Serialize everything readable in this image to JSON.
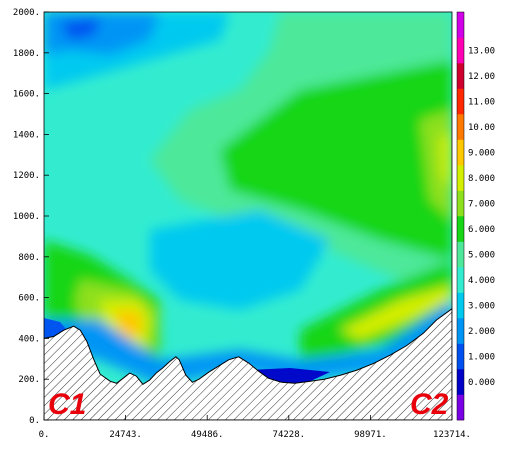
{
  "chart_data": {
    "type": "heatmap",
    "title": "",
    "xlabel": "",
    "ylabel": "",
    "xlim": [
      0,
      123714
    ],
    "ylim": [
      0,
      2000
    ],
    "x_tick_labels": [
      "0.",
      "24743.",
      "49486.",
      "74228.",
      "98971.",
      "123714."
    ],
    "x_ticks": [
      0,
      24743,
      49486,
      74228,
      98971,
      123714
    ],
    "y_tick_labels": [
      "0.",
      "200.",
      "400.",
      "600.",
      "800.",
      "1000.",
      "1200.",
      "1400.",
      "1600.",
      "1800.",
      "2000."
    ],
    "y_ticks": [
      0,
      200,
      400,
      600,
      800,
      1000,
      1200,
      1400,
      1600,
      1800,
      2000
    ],
    "colorbar": {
      "labels": [
        "0.000",
        "1.000",
        "2.000",
        "3.000",
        "4.000",
        "5.000",
        "6.000",
        "7.000",
        "8.000",
        "9.000",
        "10.00",
        "11.00",
        "12.00",
        "13.00"
      ],
      "colors": [
        "#7a00e6",
        "#0000c8",
        "#0050f0",
        "#0095f5",
        "#00c9f0",
        "#33ecd0",
        "#4ee89a",
        "#16d616",
        "#8ee01e",
        "#d4ee00",
        "#ffc800",
        "#ff7800",
        "#ff2800",
        "#d0002e",
        "#ff00b4",
        "#d200e8"
      ]
    },
    "terrain": [
      [
        0,
        400
      ],
      [
        3000,
        410
      ],
      [
        6000,
        440
      ],
      [
        9000,
        460
      ],
      [
        11000,
        440
      ],
      [
        13000,
        385
      ],
      [
        15000,
        300
      ],
      [
        17000,
        225
      ],
      [
        20000,
        190
      ],
      [
        22000,
        180
      ],
      [
        24000,
        205
      ],
      [
        26000,
        230
      ],
      [
        28000,
        215
      ],
      [
        30000,
        175
      ],
      [
        32000,
        195
      ],
      [
        34000,
        230
      ],
      [
        36000,
        255
      ],
      [
        38000,
        285
      ],
      [
        40000,
        310
      ],
      [
        41000,
        295
      ],
      [
        43000,
        220
      ],
      [
        45000,
        185
      ],
      [
        47000,
        200
      ],
      [
        50000,
        235
      ],
      [
        53000,
        265
      ],
      [
        56000,
        295
      ],
      [
        59000,
        310
      ],
      [
        62000,
        280
      ],
      [
        65000,
        240
      ],
      [
        68000,
        205
      ],
      [
        72000,
        185
      ],
      [
        76000,
        180
      ],
      [
        80000,
        188
      ],
      [
        85000,
        200
      ],
      [
        90000,
        220
      ],
      [
        95000,
        245
      ],
      [
        100000,
        278
      ],
      [
        105000,
        318
      ],
      [
        110000,
        365
      ],
      [
        115000,
        425
      ],
      [
        119000,
        490
      ],
      [
        123714,
        545
      ]
    ],
    "corner_labels": [
      "C1",
      "C2"
    ]
  }
}
